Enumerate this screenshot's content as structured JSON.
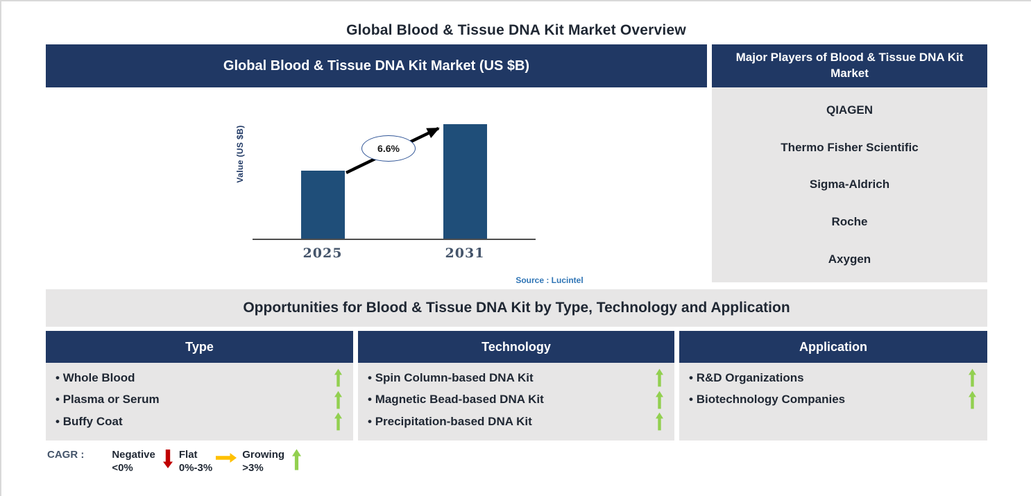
{
  "page_title": "Global Blood & Tissue DNA Kit Market Overview",
  "market_panel": {
    "header": "Global Blood & Tissue DNA Kit Market (US $B)",
    "source": "Source : Lucintel"
  },
  "chart_data": {
    "type": "bar",
    "title": "Global Blood & Tissue DNA Kit Market (US $B)",
    "ylabel": "Value (US $B)",
    "xlabel": "",
    "categories": [
      "2025",
      "2031"
    ],
    "values": [
      1.0,
      1.68
    ],
    "units": "relative bar heights; y-axis has no tick labels",
    "annotation": {
      "label": "6.6%",
      "meaning": "growth (CAGR) from 2025 to 2031, shown in oval on arrow between bars"
    },
    "source": "Source : Lucintel",
    "grid": false,
    "legend_position": "none",
    "ylim": [
      0,
      1.68
    ]
  },
  "players_panel": {
    "header": "Major Players of Blood & Tissue DNA Kit Market",
    "players": [
      "QIAGEN",
      "Thermo Fisher Scientific",
      "Sigma-Aldrich",
      "Roche",
      "Axygen"
    ]
  },
  "opportunities": {
    "header": "Opportunities for Blood & Tissue DNA Kit by Type, Technology and Application",
    "columns": [
      {
        "title": "Type",
        "items": [
          {
            "label": "Whole Blood",
            "trend": "growing"
          },
          {
            "label": "Plasma or Serum",
            "trend": "growing"
          },
          {
            "label": "Buffy Coat",
            "trend": "growing"
          }
        ]
      },
      {
        "title": "Technology",
        "items": [
          {
            "label": "Spin Column-based DNA Kit",
            "trend": "growing"
          },
          {
            "label": "Magnetic Bead-based DNA Kit",
            "trend": "growing"
          },
          {
            "label": "Precipitation-based DNA Kit",
            "trend": "growing"
          }
        ]
      },
      {
        "title": "Application",
        "items": [
          {
            "label": "R&D Organizations",
            "trend": "growing"
          },
          {
            "label": "Biotechnology Companies",
            "trend": "growing"
          }
        ]
      }
    ]
  },
  "cagr_legend": {
    "label": "CAGR :",
    "entries": [
      {
        "name": "Negative",
        "range": "<0%",
        "direction": "down",
        "color": "#C00000"
      },
      {
        "name": "Flat",
        "range": "0%-3%",
        "direction": "right",
        "color": "#FFC000"
      },
      {
        "name": "Growing",
        "range": ">3%",
        "direction": "up",
        "color": "#92D050"
      }
    ]
  },
  "colors": {
    "header_navy": "#203864",
    "panel_gray": "#E7E6E6",
    "bar_blue": "#1F4E79",
    "growing_green": "#92D050",
    "source_blue": "#2E74B5",
    "year_label_slate": "#44546A",
    "dark_text": "#1F2733"
  }
}
